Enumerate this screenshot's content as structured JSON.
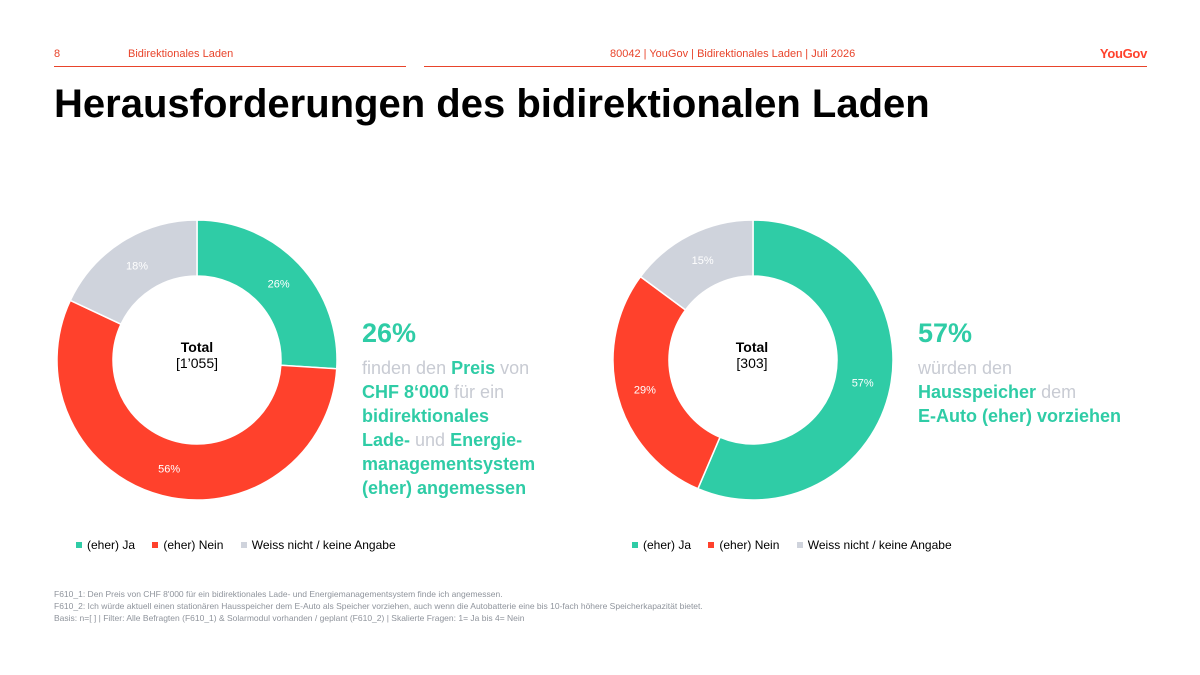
{
  "header": {
    "page_number": "8",
    "section": "Bidirektionales Laden",
    "meta": "80042 | YouGov | Bidirektionales Laden | Juli 2026",
    "logo": "YouGov"
  },
  "title": "Herausforderungen des bidirektionalen Laden",
  "colors": {
    "ja": "#2fcca6",
    "nein": "#ff412c",
    "weiss": "#cfd3dc",
    "accent": "#e8442b"
  },
  "chart_data": [
    {
      "type": "pie",
      "subtype": "donut",
      "center_title": "Total",
      "center_n": "[1’055]",
      "categories": [
        "(eher) Ja",
        "(eher) Nein",
        "Weiss nicht / keine Angabe"
      ],
      "values": [
        26,
        56,
        18
      ],
      "labels": [
        "26%",
        "56%",
        "18%"
      ],
      "legend": [
        "(eher) Ja",
        "(eher) Nein",
        "Weiss nicht / keine Angabe"
      ],
      "legend_position": "bottom"
    },
    {
      "type": "pie",
      "subtype": "donut",
      "center_title": "Total",
      "center_n": "[303]",
      "categories": [
        "(eher) Ja",
        "(eher) Nein",
        "Weiss nicht / keine Angabe"
      ],
      "values": [
        57,
        29,
        15
      ],
      "labels": [
        "57%",
        "29%",
        "15%"
      ],
      "legend": [
        "(eher) Ja",
        "(eher) Nein",
        "Weiss nicht / keine Angabe"
      ],
      "legend_position": "bottom"
    }
  ],
  "callout1": {
    "big": "26%",
    "p1": "finden den ",
    "p2": "Preis",
    "p3": " von",
    "p4": "CHF 8‘000",
    "p5": " für ein",
    "p6": "bidirektionales",
    "p7": "Lade-",
    "p8": " und ",
    "p9": "Energie-",
    "p10": "managementsystem",
    "p11": "(eher) angemessen"
  },
  "callout2": {
    "big": "57%",
    "p1": "würden den",
    "p2": "Hausspeicher",
    "p3": " dem",
    "p4": "E-Auto (eher) vorziehen"
  },
  "footnotes": [
    "F610_1: Den Preis von CHF 8'000 für ein bidirektionales Lade- und Energiemanagementsystem finde ich angemessen.",
    "F610_2: Ich würde aktuell einen stationären Hausspeicher dem E-Auto als Speicher vorziehen, auch wenn die Autobatterie eine bis 10-fach höhere Speicherkapazität bietet.",
    "Basis: n=[ ] | Filter: Alle Befragten (F610_1) & Solarmodul vorhanden / geplant (F610_2) | Skalierte Fragen: 1= Ja bis 4= Nein"
  ]
}
